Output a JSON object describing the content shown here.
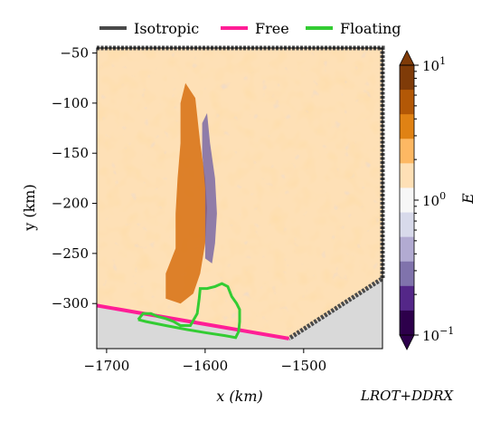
{
  "chart_data": {
    "type": "heatmap",
    "title": "",
    "xlabel": "x (km)",
    "ylabel": "y (km)",
    "xlim": [
      -1710,
      -1420
    ],
    "ylim": [
      -345,
      -45
    ],
    "x_ticks": [
      {
        "value": -1700,
        "label": "−1700"
      },
      {
        "value": -1600,
        "label": "−1600"
      },
      {
        "value": -1500,
        "label": "−1500"
      }
    ],
    "y_ticks": [
      {
        "value": -50,
        "label": "−50"
      },
      {
        "value": -100,
        "label": "−100"
      },
      {
        "value": -150,
        "label": "−150"
      },
      {
        "value": -200,
        "label": "−200"
      },
      {
        "value": -250,
        "label": "−250"
      },
      {
        "value": -300,
        "label": "−300"
      }
    ],
    "legend_position": "top",
    "legend": [
      {
        "name": "Isotropic",
        "color": "#4a4a4a"
      },
      {
        "name": "Free",
        "color": "#ff1e96"
      },
      {
        "name": "Floating",
        "color": "#33cc33"
      }
    ],
    "colorbar": {
      "label": "E",
      "scale": "log",
      "range": [
        0.1,
        10
      ],
      "ticks": [
        {
          "value": 10,
          "label_base": "10",
          "label_exp": "1"
        },
        {
          "value": 1,
          "label_base": "10",
          "label_exp": "0"
        },
        {
          "value": 0.1,
          "label_base": "10",
          "label_exp": "−1"
        }
      ],
      "colors": [
        "#2d004b",
        "#542788",
        "#8073ac",
        "#b2abd2",
        "#d8daeb",
        "#f7f7f7",
        "#fee0b6",
        "#fdb863",
        "#e08214",
        "#b35806",
        "#7f3b08"
      ]
    },
    "annotation": "LROT+DDRX",
    "series": [
      {
        "name": "Isotropic",
        "boundary": [
          [
            -1710,
            -45
          ],
          [
            -1420,
            -45
          ],
          [
            -1420,
            -275
          ],
          [
            -1515,
            -335
          ]
        ]
      },
      {
        "name": "Free",
        "boundary": [
          [
            -1710,
            -302
          ],
          [
            -1515,
            -335
          ]
        ]
      },
      {
        "name": "Floating",
        "boundary": [
          [
            -1668,
            -316
          ],
          [
            -1663,
            -310
          ],
          [
            -1655,
            -310
          ],
          [
            -1648,
            -313
          ],
          [
            -1640,
            -315
          ],
          [
            -1632,
            -318
          ],
          [
            -1625,
            -322
          ],
          [
            -1615,
            -322
          ],
          [
            -1608,
            -310
          ],
          [
            -1606,
            -295
          ],
          [
            -1605,
            -285
          ],
          [
            -1598,
            -285
          ],
          [
            -1590,
            -283
          ],
          [
            -1583,
            -280
          ],
          [
            -1577,
            -283
          ],
          [
            -1573,
            -293
          ],
          [
            -1568,
            -300
          ],
          [
            -1565,
            -306
          ],
          [
            -1565,
            -318
          ],
          [
            -1566,
            -328
          ],
          [
            -1569,
            -334
          ],
          [
            -1580,
            -332
          ],
          [
            -1600,
            -329
          ],
          [
            -1618,
            -326
          ],
          [
            -1640,
            -322
          ],
          [
            -1660,
            -318
          ],
          [
            -1668,
            -316
          ]
        ]
      }
    ],
    "grounded_region_x_y": [
      [
        -1710,
        -45
      ],
      [
        -1420,
        -45
      ],
      [
        -1420,
        -275
      ],
      [
        -1515,
        -335
      ],
      [
        -1710,
        -302
      ]
    ],
    "high_E_band": [
      [
        -1620,
        -80
      ],
      [
        -1610,
        -95
      ],
      [
        -1605,
        -140
      ],
      [
        -1600,
        -175
      ],
      [
        -1598,
        -205
      ],
      [
        -1600,
        -240
      ],
      [
        -1605,
        -270
      ],
      [
        -1612,
        -290
      ],
      [
        -1625,
        -300
      ],
      [
        -1640,
        -295
      ],
      [
        -1640,
        -270
      ],
      [
        -1630,
        -245
      ],
      [
        -1630,
        -210
      ],
      [
        -1628,
        -175
      ],
      [
        -1625,
        -140
      ],
      [
        -1625,
        -100
      ]
    ],
    "low_E_band": [
      [
        -1598,
        -110
      ],
      [
        -1595,
        -140
      ],
      [
        -1590,
        -175
      ],
      [
        -1588,
        -210
      ],
      [
        -1590,
        -240
      ],
      [
        -1593,
        -260
      ],
      [
        -1600,
        -255
      ],
      [
        -1600,
        -220
      ],
      [
        -1600,
        -185
      ],
      [
        -1603,
        -150
      ],
      [
        -1603,
        -120
      ]
    ]
  }
}
